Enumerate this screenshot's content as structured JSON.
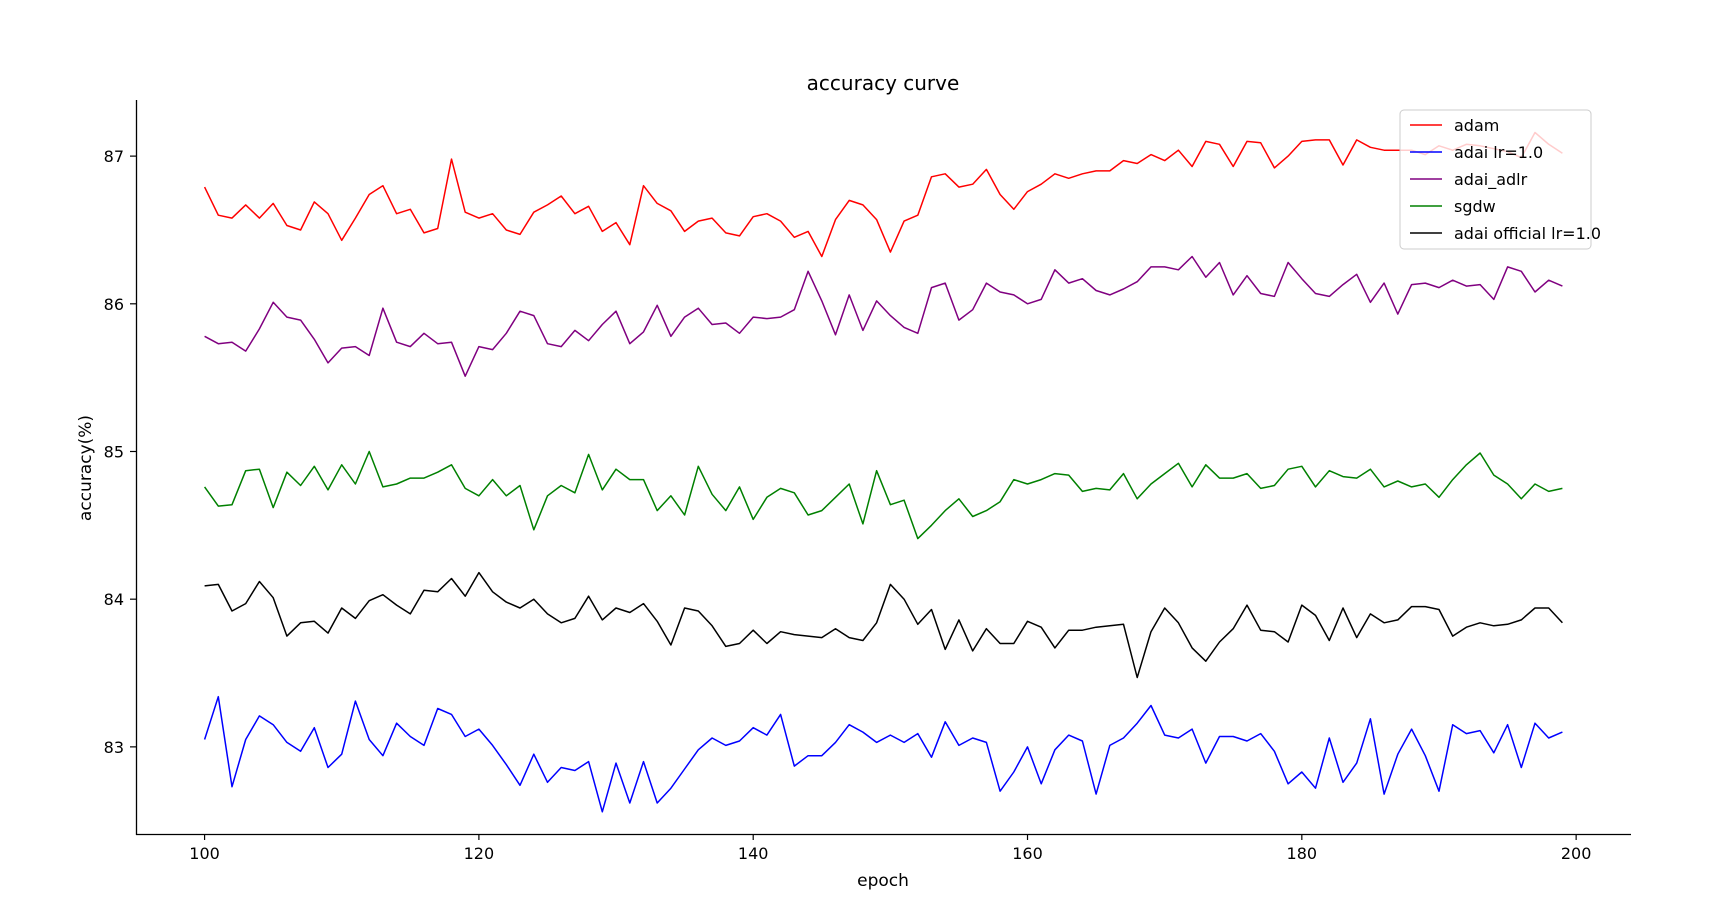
{
  "chart_data": {
    "type": "line",
    "title": "accuracy curve",
    "xlabel": "epoch",
    "ylabel": "accuracy(%)",
    "xlim": [
      95,
      204
    ],
    "ylim": [
      82.41,
      87.38
    ],
    "xticks": [
      100,
      120,
      140,
      160,
      180,
      200
    ],
    "yticks": [
      83,
      84,
      85,
      86,
      87
    ],
    "grid": false,
    "legend_position": "top-right",
    "x": [
      100,
      101,
      102,
      103,
      104,
      105,
      106,
      107,
      108,
      109,
      110,
      111,
      112,
      113,
      114,
      115,
      116,
      117,
      118,
      119,
      120,
      121,
      122,
      123,
      124,
      125,
      126,
      127,
      128,
      129,
      130,
      131,
      132,
      133,
      134,
      135,
      136,
      137,
      138,
      139,
      140,
      141,
      142,
      143,
      144,
      145,
      146,
      147,
      148,
      149,
      150,
      151,
      152,
      153,
      154,
      155,
      156,
      157,
      158,
      159,
      160,
      161,
      162,
      163,
      164,
      165,
      166,
      167,
      168,
      169,
      170,
      171,
      172,
      173,
      174,
      175,
      176,
      177,
      178,
      179,
      180,
      181,
      182,
      183,
      184,
      185,
      186,
      187,
      188,
      189,
      190,
      191,
      192,
      193,
      194,
      195,
      196,
      197,
      198,
      199
    ],
    "series": [
      {
        "name": "adam",
        "color": "#ff0000",
        "values": [
          86.79,
          86.6,
          86.58,
          86.67,
          86.58,
          86.68,
          86.53,
          86.5,
          86.69,
          86.61,
          86.43,
          86.58,
          86.74,
          86.8,
          86.61,
          86.64,
          86.48,
          86.51,
          86.98,
          86.62,
          86.58,
          86.61,
          86.5,
          86.47,
          86.62,
          86.67,
          86.73,
          86.61,
          86.66,
          86.49,
          86.55,
          86.4,
          86.8,
          86.68,
          86.63,
          86.49,
          86.56,
          86.58,
          86.48,
          86.46,
          86.59,
          86.61,
          86.56,
          86.45,
          86.49,
          86.32,
          86.57,
          86.7,
          86.67,
          86.57,
          86.35,
          86.56,
          86.6,
          86.86,
          86.88,
          86.79,
          86.81,
          86.91,
          86.74,
          86.64,
          86.76,
          86.81,
          86.88,
          86.85,
          86.88,
          86.9,
          86.9,
          86.97,
          86.95,
          87.01,
          86.97,
          87.04,
          86.93,
          87.1,
          87.08,
          86.93,
          87.1,
          87.09,
          86.92,
          87.0,
          87.1,
          87.11,
          87.11,
          86.94,
          87.11,
          87.06,
          87.04,
          87.04,
          87.04,
          87.01,
          87.07,
          87.04,
          87.08,
          87.07,
          87.05,
          87.03,
          86.99,
          87.16,
          87.08,
          87.02
        ]
      },
      {
        "name": "adai lr=1.0",
        "color": "#0000ff",
        "values": [
          83.05,
          83.34,
          82.73,
          83.05,
          83.21,
          83.15,
          83.03,
          82.97,
          83.13,
          82.86,
          82.95,
          83.31,
          83.05,
          82.94,
          83.16,
          83.07,
          83.01,
          83.26,
          83.22,
          83.07,
          83.12,
          83.01,
          82.88,
          82.74,
          82.95,
          82.76,
          82.86,
          82.84,
          82.9,
          82.56,
          82.89,
          82.62,
          82.9,
          82.62,
          82.72,
          82.85,
          82.98,
          83.06,
          83.01,
          83.04,
          83.13,
          83.08,
          83.22,
          82.87,
          82.94,
          82.94,
          83.03,
          83.15,
          83.1,
          83.03,
          83.08,
          83.03,
          83.09,
          82.93,
          83.17,
          83.01,
          83.06,
          83.03,
          82.7,
          82.83,
          83.0,
          82.75,
          82.98,
          83.08,
          83.04,
          82.68,
          83.01,
          83.06,
          83.16,
          83.28,
          83.08,
          83.06,
          83.12,
          82.89,
          83.07,
          83.07,
          83.04,
          83.09,
          82.97,
          82.75,
          82.83,
          82.72,
          83.06,
          82.76,
          82.89,
          83.19,
          82.68,
          82.95,
          83.12,
          82.94,
          82.7,
          83.15,
          83.09,
          83.11,
          82.96,
          83.15,
          82.86,
          83.16,
          83.06,
          83.1
        ]
      },
      {
        "name": "adai_adlr",
        "color": "#800080",
        "values": [
          85.78,
          85.73,
          85.74,
          85.68,
          85.83,
          86.01,
          85.91,
          85.89,
          85.76,
          85.6,
          85.7,
          85.71,
          85.65,
          85.97,
          85.74,
          85.71,
          85.8,
          85.73,
          85.74,
          85.51,
          85.71,
          85.69,
          85.8,
          85.95,
          85.92,
          85.73,
          85.71,
          85.82,
          85.75,
          85.86,
          85.95,
          85.73,
          85.81,
          85.99,
          85.78,
          85.91,
          85.97,
          85.86,
          85.87,
          85.8,
          85.91,
          85.9,
          85.91,
          85.96,
          86.22,
          86.02,
          85.79,
          86.06,
          85.82,
          86.02,
          85.92,
          85.84,
          85.8,
          86.11,
          86.14,
          85.89,
          85.96,
          86.14,
          86.08,
          86.06,
          86.0,
          86.03,
          86.23,
          86.14,
          86.17,
          86.09,
          86.06,
          86.1,
          86.15,
          86.25,
          86.25,
          86.23,
          86.32,
          86.18,
          86.28,
          86.06,
          86.19,
          86.07,
          86.05,
          86.28,
          86.17,
          86.07,
          86.05,
          86.13,
          86.2,
          86.01,
          86.14,
          85.93,
          86.13,
          86.14,
          86.11,
          86.16,
          86.12,
          86.13,
          86.03,
          86.25,
          86.22,
          86.08,
          86.16,
          86.12
        ]
      },
      {
        "name": "sgdw",
        "color": "#008000",
        "values": [
          84.76,
          84.63,
          84.64,
          84.87,
          84.88,
          84.62,
          84.86,
          84.77,
          84.9,
          84.74,
          84.91,
          84.78,
          85.0,
          84.76,
          84.78,
          84.82,
          84.82,
          84.86,
          84.91,
          84.75,
          84.7,
          84.81,
          84.7,
          84.77,
          84.47,
          84.7,
          84.77,
          84.72,
          84.98,
          84.74,
          84.88,
          84.81,
          84.81,
          84.6,
          84.7,
          84.57,
          84.9,
          84.71,
          84.6,
          84.76,
          84.54,
          84.69,
          84.75,
          84.72,
          84.57,
          84.6,
          84.69,
          84.78,
          84.51,
          84.87,
          84.64,
          84.67,
          84.41,
          84.5,
          84.6,
          84.68,
          84.56,
          84.6,
          84.66,
          84.81,
          84.78,
          84.81,
          84.85,
          84.84,
          84.73,
          84.75,
          84.74,
          84.85,
          84.68,
          84.78,
          84.85,
          84.92,
          84.76,
          84.91,
          84.82,
          84.82,
          84.85,
          84.75,
          84.77,
          84.88,
          84.9,
          84.76,
          84.87,
          84.83,
          84.82,
          84.88,
          84.76,
          84.8,
          84.76,
          84.78,
          84.69,
          84.81,
          84.91,
          84.99,
          84.84,
          84.78,
          84.68,
          84.78,
          84.73,
          84.75
        ]
      },
      {
        "name": "adai official lr=1.0",
        "color": "#000000",
        "values": [
          84.09,
          84.1,
          83.92,
          83.97,
          84.12,
          84.01,
          83.75,
          83.84,
          83.85,
          83.77,
          83.94,
          83.87,
          83.99,
          84.03,
          83.96,
          83.9,
          84.06,
          84.05,
          84.14,
          84.02,
          84.18,
          84.05,
          83.98,
          83.94,
          84.0,
          83.9,
          83.84,
          83.87,
          84.02,
          83.86,
          83.94,
          83.91,
          83.97,
          83.85,
          83.69,
          83.94,
          83.92,
          83.82,
          83.68,
          83.7,
          83.79,
          83.7,
          83.78,
          83.76,
          83.75,
          83.74,
          83.8,
          83.74,
          83.72,
          83.84,
          84.1,
          84.0,
          83.83,
          83.93,
          83.66,
          83.86,
          83.65,
          83.8,
          83.7,
          83.7,
          83.85,
          83.81,
          83.67,
          83.79,
          83.79,
          83.81,
          83.82,
          83.83,
          83.47,
          83.78,
          83.94,
          83.84,
          83.67,
          83.58,
          83.71,
          83.8,
          83.96,
          83.79,
          83.78,
          83.71,
          83.96,
          83.89,
          83.72,
          83.94,
          83.74,
          83.9,
          83.84,
          83.86,
          83.95,
          83.95,
          83.93,
          83.75,
          83.81,
          83.84,
          83.82,
          83.83,
          83.86,
          83.94,
          83.94,
          83.84
        ]
      }
    ]
  }
}
